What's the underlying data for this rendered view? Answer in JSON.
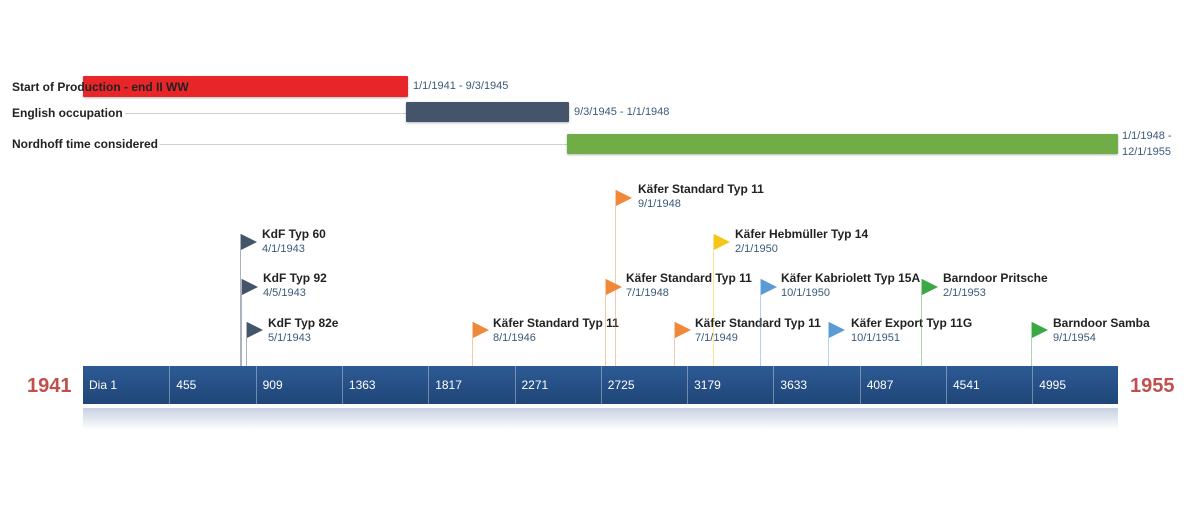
{
  "phases": [
    {
      "label": "Start of Production - end II WW",
      "dates": "1/1/1941 - 9/3/1945",
      "color": "#e8262a"
    },
    {
      "label": "English occupation",
      "dates": "9/3/1945 - 1/1/1948",
      "color": "#44546a"
    },
    {
      "label": "Nordhoff time considered",
      "dates_line1": "1/1/1948 -",
      "dates_line2": "12/1/1955",
      "color": "#70ad47"
    }
  ],
  "milestones": [
    {
      "title": "KdF Typ 60",
      "date": "4/1/1943",
      "color": "#44546a"
    },
    {
      "title": "KdF Typ 92",
      "date": "4/5/1943",
      "color": "#44546a"
    },
    {
      "title": "KdF Typ 82e",
      "date": "5/1/1943",
      "color": "#44546a"
    },
    {
      "title": "Käfer Standard Typ 11",
      "date": "8/1/1946",
      "color": "#f0883a"
    },
    {
      "title": "Käfer Standard Typ 11",
      "date": "9/1/1948",
      "color": "#f0883a"
    },
    {
      "title": "Käfer Standard Typ 11",
      "date": "7/1/1948",
      "color": "#f0883a"
    },
    {
      "title": "Käfer Standard Typ 11",
      "date": "7/1/1949",
      "color": "#f0883a"
    },
    {
      "title": "Käfer Hebmüller Typ 14",
      "date": "2/1/1950",
      "color": "#f5c518"
    },
    {
      "title": "Käfer Kabriolett Typ 15A",
      "date": "10/1/1950",
      "color": "#5b9bd5"
    },
    {
      "title": "Käfer Export Typ 11G",
      "date": "10/1/1951",
      "color": "#5b9bd5"
    },
    {
      "title": "Barndoor Pritsche",
      "date": "2/1/1953",
      "color": "#3aa845"
    },
    {
      "title": "Barndoor Samba",
      "date": "9/1/1954",
      "color": "#3aa845"
    }
  ],
  "axis": {
    "start_year": "1941",
    "end_year": "1955",
    "ticks": [
      "Dia 1",
      "455",
      "909",
      "1363",
      "1817",
      "2271",
      "2725",
      "3179",
      "3633",
      "4087",
      "4541",
      "4995"
    ]
  }
}
